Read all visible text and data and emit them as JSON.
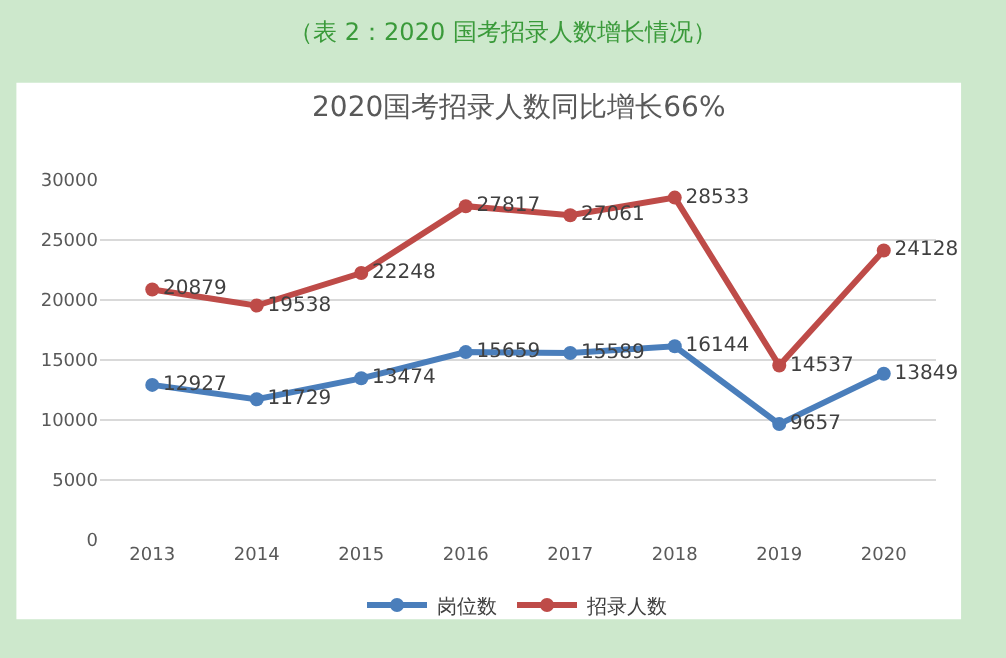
{
  "chart_data": {
    "type": "line",
    "title": "（表 2：2020 国考招录人数增长情况）",
    "subtitle": "2020国考招录人数同比增长66%",
    "categories": [
      "2013",
      "2014",
      "2015",
      "2016",
      "2017",
      "2018",
      "2019",
      "2020"
    ],
    "series": [
      {
        "name": "岗位数",
        "color": "#4a7ebb",
        "values": [
          12927,
          11729,
          13474,
          15659,
          15589,
          16144,
          9657,
          13849
        ]
      },
      {
        "name": "招录人数",
        "color": "#be4b48",
        "values": [
          20879,
          19538,
          22248,
          27817,
          27061,
          28533,
          14537,
          24128
        ]
      }
    ],
    "ylim": [
      0,
      30000
    ],
    "yticks": [
      0,
      5000,
      10000,
      15000,
      20000,
      25000,
      30000
    ],
    "grid": "y",
    "legend": "bottom",
    "marker": "circle",
    "line_style": "solid",
    "data_labels": true
  }
}
